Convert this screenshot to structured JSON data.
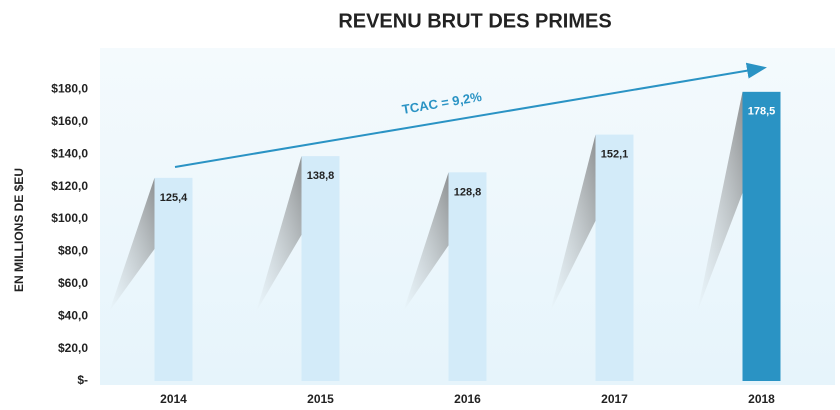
{
  "chart_data": {
    "type": "bar",
    "title": "REVENU BRUT DES PRIMES",
    "y_label": "EN MILLIONS DE $EU",
    "annotation": "TCAC = 9,2%",
    "categories": [
      "2014",
      "2015",
      "2016",
      "2017",
      "2018"
    ],
    "values": [
      125.4,
      138.8,
      128.8,
      152.1,
      178.5
    ],
    "value_labels": [
      "125,4",
      "138,8",
      "128,8",
      "152,1",
      "178,5"
    ],
    "colors": [
      "#d3ebf9",
      "#d3ebf9",
      "#d3ebf9",
      "#d3ebf9",
      "#2a93c4"
    ],
    "ylim": [
      0,
      200
    ],
    "yticks": [
      {
        "value": 0,
        "label": "$-"
      },
      {
        "value": 20,
        "label": "$20,0"
      },
      {
        "value": 40,
        "label": "$40,0"
      },
      {
        "value": 60,
        "label": "$60,0"
      },
      {
        "value": 80,
        "label": "$80,0"
      },
      {
        "value": 100,
        "label": "$100,0"
      },
      {
        "value": 120,
        "label": "$120,0"
      },
      {
        "value": 140,
        "label": "$140,0"
      },
      {
        "value": 160,
        "label": "$160,0"
      },
      {
        "value": 180,
        "label": "$180,0"
      }
    ],
    "grid": false
  }
}
